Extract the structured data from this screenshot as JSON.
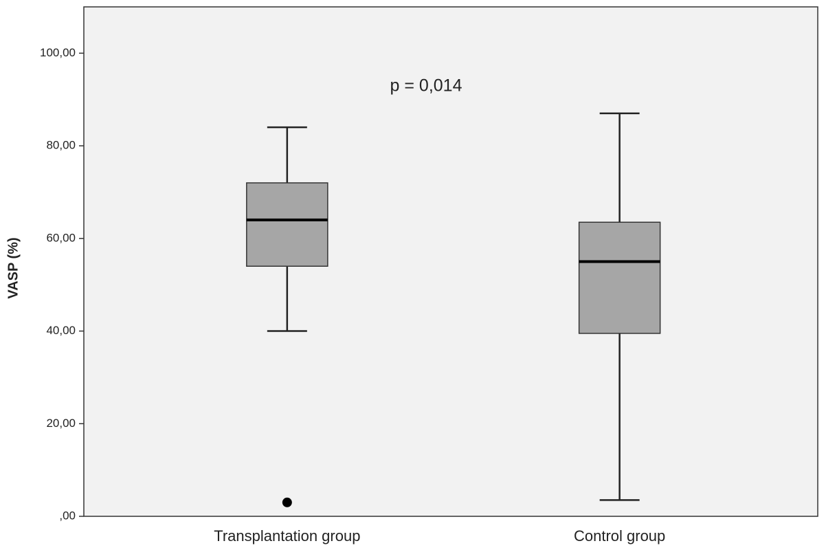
{
  "chart_data": {
    "type": "box",
    "y_label": "VASP (%)",
    "annotation": "p = 0,014",
    "categories": [
      "Transplantation group",
      "Control group"
    ],
    "boxes": [
      {
        "min": 40,
        "q1": 54,
        "median": 64,
        "q3": 72,
        "max": 84,
        "outliers": [
          3
        ]
      },
      {
        "min": 3.5,
        "q1": 39.5,
        "median": 55,
        "q3": 63.5,
        "max": 87,
        "outliers": []
      }
    ],
    "color": "#a6a6a6",
    "ylim": [
      0,
      110
    ],
    "yticks": [
      {
        "value": 0,
        "label": ",00"
      },
      {
        "value": 20,
        "label": "20,00"
      },
      {
        "value": 40,
        "label": "40,00"
      },
      {
        "value": 60,
        "label": "60,00"
      },
      {
        "value": 80,
        "label": "80,00"
      },
      {
        "value": 100,
        "label": "100,00"
      }
    ],
    "grid": false
  }
}
